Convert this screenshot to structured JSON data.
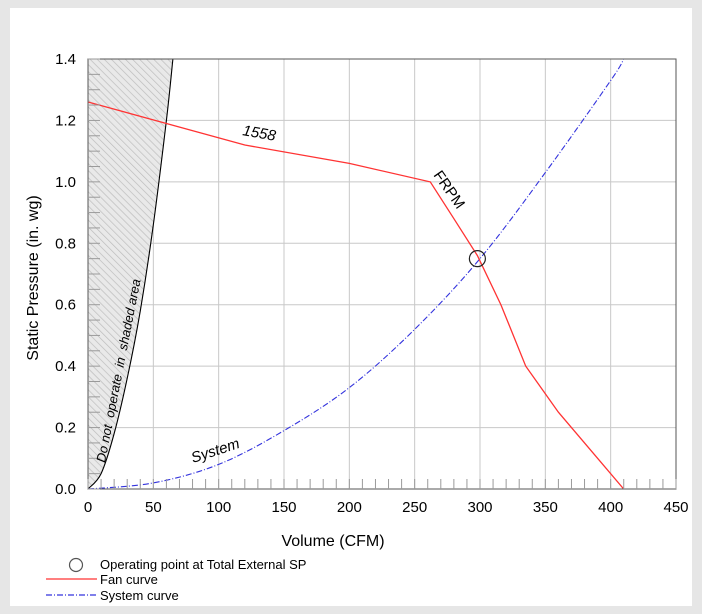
{
  "chart_data": {
    "type": "line",
    "xlabel": "Volume (CFM)",
    "ylabel": "Static Pressure (in. wg)",
    "xlim": [
      0,
      450
    ],
    "ylim": [
      0,
      1.4
    ],
    "x_ticks": [
      "0",
      "50",
      "100",
      "150",
      "200",
      "250",
      "300",
      "350",
      "400",
      "450"
    ],
    "y_ticks": [
      "0.0",
      "0.2",
      "0.4",
      "0.6",
      "0.8",
      "1.0",
      "1.2",
      "1.4"
    ],
    "grid": true,
    "series": [
      {
        "name": "Fan curve",
        "color": "#ff3333",
        "style": "solid",
        "points": [
          [
            0,
            1.26
          ],
          [
            60,
            1.19
          ],
          [
            120,
            1.12
          ],
          [
            200,
            1.06
          ],
          [
            262,
            1.0
          ],
          [
            280,
            0.88
          ],
          [
            298,
            0.76
          ],
          [
            316,
            0.6
          ],
          [
            335,
            0.4
          ],
          [
            360,
            0.25
          ],
          [
            390,
            0.1
          ],
          [
            410,
            0.0
          ]
        ]
      },
      {
        "name": "System curve",
        "color": "#3333dd",
        "style": "dash-dot",
        "points": [
          [
            0,
            0.0
          ],
          [
            50,
            0.02
          ],
          [
            100,
            0.08
          ],
          [
            150,
            0.19
          ],
          [
            200,
            0.33
          ],
          [
            250,
            0.52
          ],
          [
            300,
            0.75
          ],
          [
            350,
            1.03
          ],
          [
            400,
            1.33
          ],
          [
            410,
            1.4
          ]
        ]
      },
      {
        "name": "Do not operate boundary",
        "color": "#000000",
        "style": "solid",
        "points": [
          [
            0,
            0.0
          ],
          [
            10,
            0.05
          ],
          [
            20,
            0.18
          ],
          [
            30,
            0.36
          ],
          [
            40,
            0.58
          ],
          [
            50,
            0.86
          ],
          [
            60,
            1.2
          ],
          [
            65,
            1.4
          ]
        ]
      }
    ],
    "operating_point": {
      "x": 298,
      "y": 0.75
    },
    "annotations": {
      "fan_speed": "1558",
      "frpm": "FRPM",
      "system": "System",
      "shaded": "Do not  operate  in  shaded area"
    },
    "legend": {
      "placement": "bottom-left",
      "operating_point": "Operating point at Total External SP",
      "fan_curve": "Fan curve",
      "system_curve": "System curve"
    }
  }
}
